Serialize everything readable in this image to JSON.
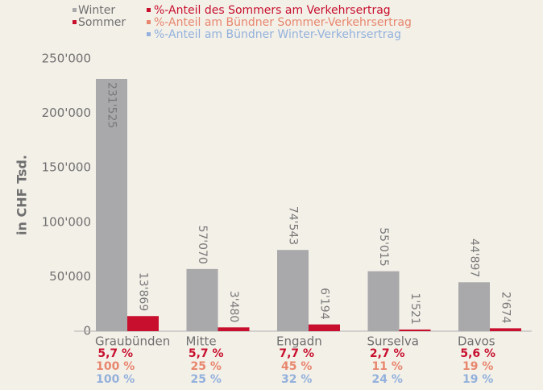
{
  "chart_data": {
    "type": "bar",
    "ylabel": "in CHF Tsd.",
    "categories": [
      "Graubünden",
      "Mitte",
      "Engadn",
      "Surselva",
      "Davos"
    ],
    "series": [
      {
        "name": "Winter",
        "color": "#a9a8aa",
        "values": [
          231525,
          57070,
          74543,
          55015,
          44897
        ],
        "value_labels": [
          "231'525",
          "57'070",
          "74'543",
          "55'015",
          "44'897"
        ]
      },
      {
        "name": "Sommer",
        "color": "#c8102e",
        "values": [
          13869,
          3480,
          6194,
          1521,
          2674
        ],
        "value_labels": [
          "13'869",
          "3'480",
          "6'194",
          "1'521",
          "2'674"
        ]
      }
    ],
    "shares": [
      {
        "name": "%-Anteil des Sommers am Verkehrsertrag",
        "color": "#c8102e",
        "values": [
          5.7,
          5.7,
          7.7,
          2.7,
          5.6
        ],
        "value_labels": [
          "5,7 %",
          "5,7 %",
          "7,7 %",
          "2,7 %",
          "5,6 %"
        ]
      },
      {
        "name": "%-Anteil am Bündner Sommer-Verkehrsertrag",
        "color": "#e8866e",
        "values": [
          100,
          25,
          45,
          11,
          19
        ],
        "value_labels": [
          "100 %",
          "25 %",
          "45 %",
          "11 %",
          "19 %"
        ]
      },
      {
        "name": "%-Anteil am Bündner Winter-Verkehrsertrag",
        "color": "#93b1dc",
        "values": [
          100,
          25,
          32,
          24,
          19
        ],
        "value_labels": [
          "100 %",
          "25 %",
          "32 %",
          "24 %",
          "19 %"
        ]
      }
    ],
    "ylim": [
      0,
      250000
    ],
    "yticks": [
      {
        "value": 0,
        "label": "0"
      },
      {
        "value": 50000,
        "label": "50'000"
      },
      {
        "value": 100000,
        "label": "100'000"
      },
      {
        "value": 150000,
        "label": "150'000"
      },
      {
        "value": 200000,
        "label": "200'000"
      },
      {
        "value": 250000,
        "label": "250'000"
      }
    ],
    "grid": false
  }
}
